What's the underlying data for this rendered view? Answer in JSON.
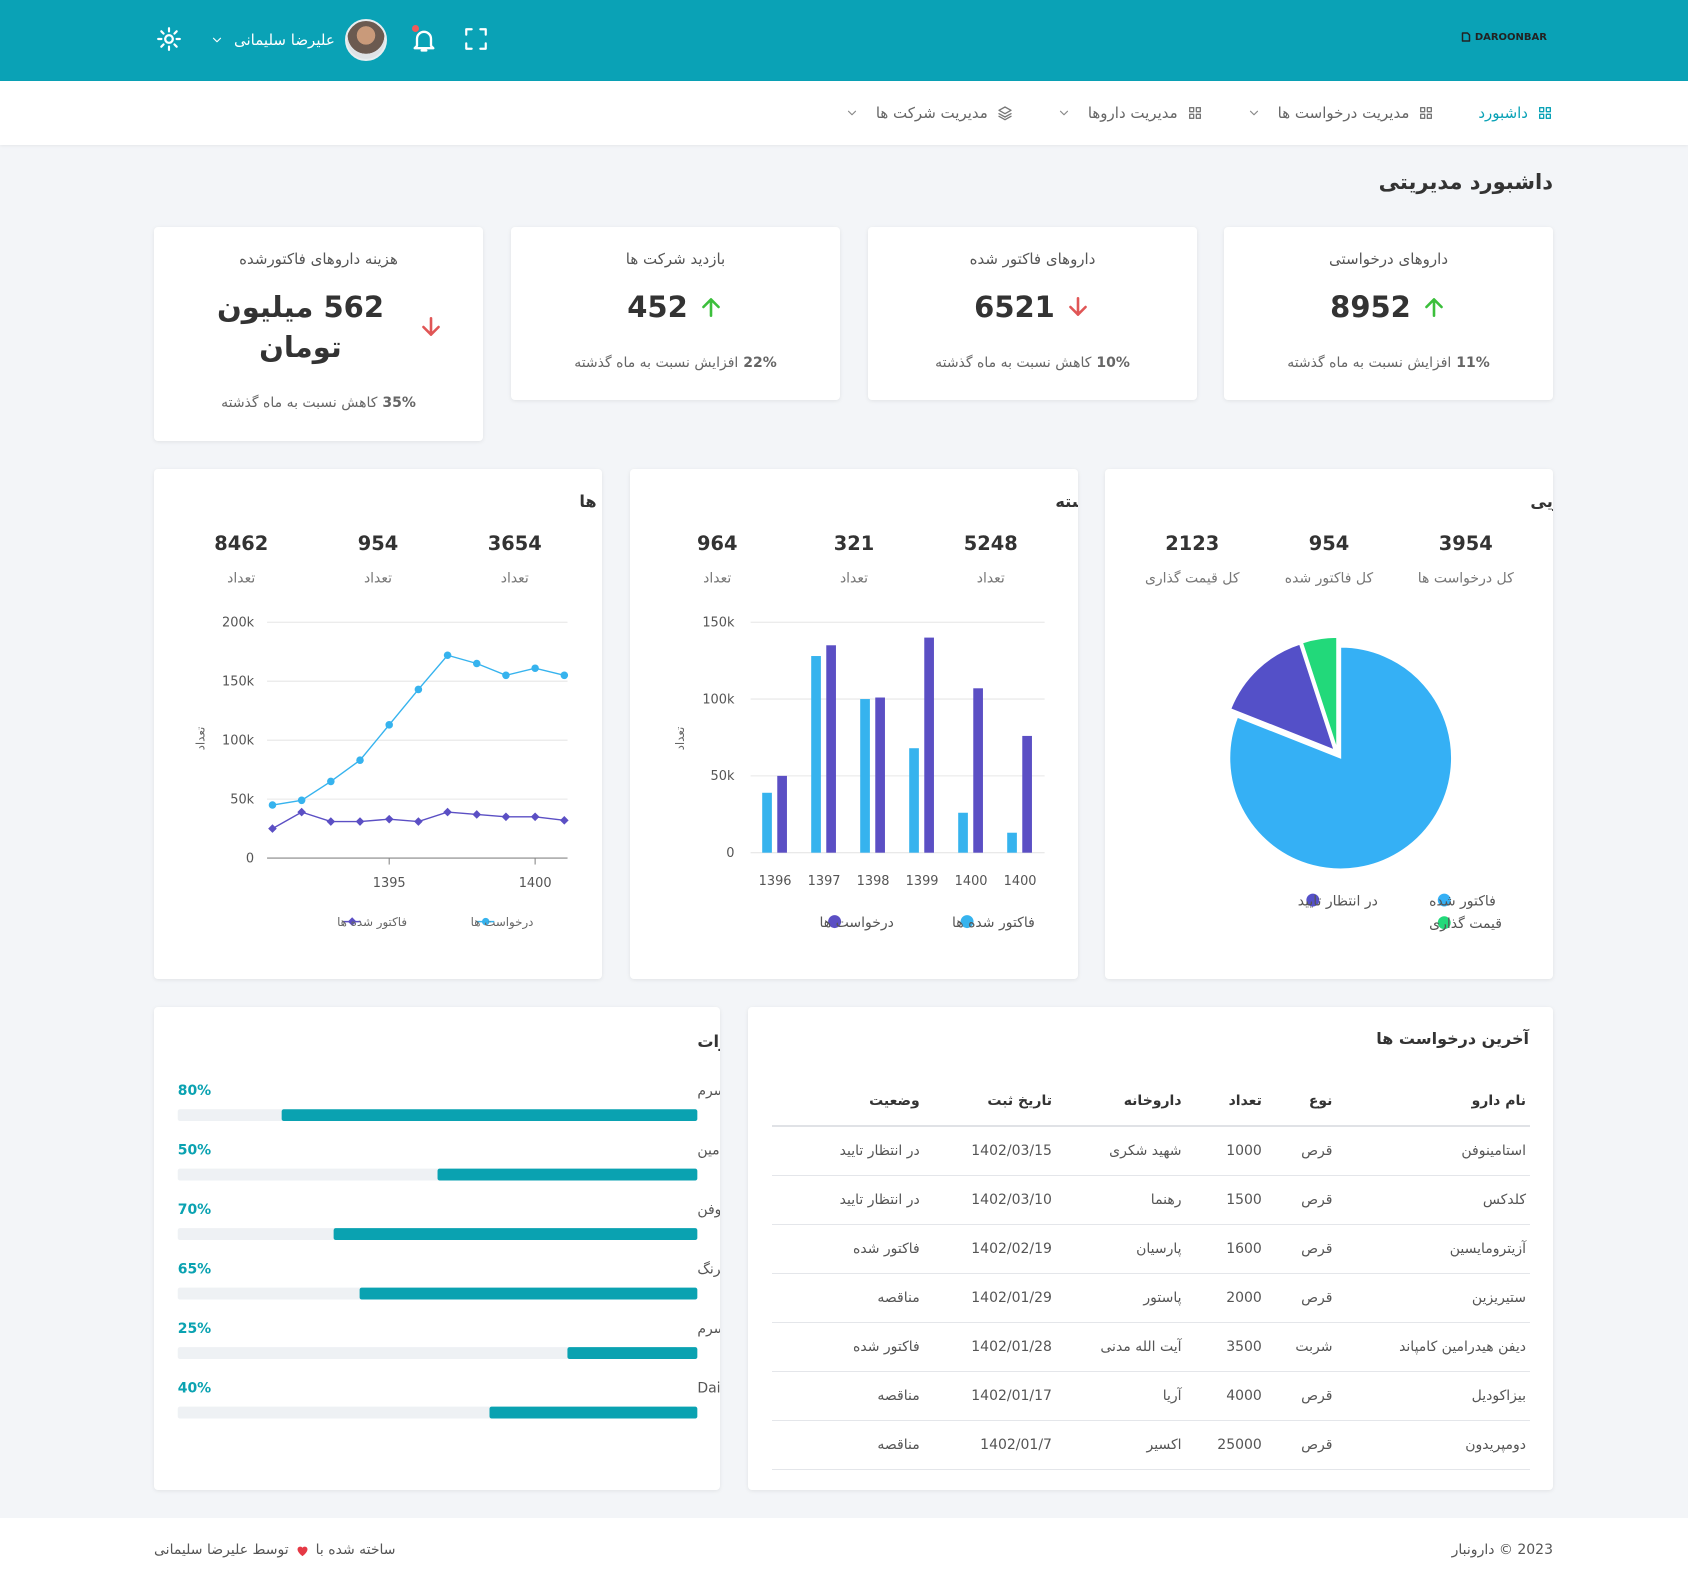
{
  "header": {
    "brand": "DAROONBAR",
    "user": "علیرضا سلیمانی"
  },
  "nav": [
    "داشبورد",
    "مدیریت درخواست ها",
    "مدیریت داروها",
    "مدیریت شرکت ها"
  ],
  "page_title": "داشبورد مدیریتی",
  "stats": [
    {
      "title": "داروهای درخواستی",
      "value": "8952",
      "trend": "up",
      "change": "11%",
      "note": "افزایش نسبت به ماه گذشته"
    },
    {
      "title": "داروهای فاکتور شده",
      "value": "6521",
      "trend": "down",
      "change": "10%",
      "note": "کاهش نسبت به ماه گذشته"
    },
    {
      "title": "بازدید شرکت ها",
      "value": "452",
      "trend": "up",
      "change": "22%",
      "note": "افزایش نسبت به ماه گذشته"
    },
    {
      "title": "هزینه داروهای فاکتورشده",
      "value": "562 میلیون تومان",
      "trend": "down",
      "change": "35%",
      "note": "کاهش نسبت به ماه گذشته"
    }
  ],
  "charts": [
    {
      "type": "line",
      "title": "تعداد فاکتور شده ها",
      "summary": [
        {
          "value": 3654,
          "label": "تعداد"
        },
        {
          "value": 954,
          "label": "تعداد"
        },
        {
          "value": 8462,
          "label": "تعداد"
        }
      ],
      "ylabel": "تعداد",
      "x": [
        1391,
        1392,
        1393,
        1394,
        1395,
        1396,
        1397,
        1398,
        1399,
        1400,
        1401
      ],
      "xlim": [
        1391,
        1401
      ],
      "xticks": [
        1395,
        1400
      ],
      "ylim": [
        0,
        200000
      ],
      "yticks": [
        0,
        {
          "value": 50000,
          "label": "50k"
        },
        {
          "value": 100000,
          "label": "100k"
        },
        {
          "value": 150000,
          "label": "150k"
        },
        {
          "value": 200000,
          "label": "200k"
        }
      ],
      "grid": true,
      "series": [
        {
          "name": "درخواست ها",
          "color": "#36b3ee",
          "values": [
            45000,
            49000,
            65000,
            83000,
            113000,
            143000,
            172000,
            165000,
            155000,
            161000,
            155000
          ]
        },
        {
          "name": "فاکتور شده ها",
          "color": "#5b4fc4",
          "values": [
            25000,
            39000,
            31000,
            31000,
            33000,
            31000,
            39000,
            37000,
            35000,
            35000,
            32000
          ]
        }
      ]
    },
    {
      "type": "bar",
      "title": "درخواست و فاکتور سال های گذشته",
      "summary": [
        {
          "value": 5248,
          "label": "تعداد"
        },
        {
          "value": 321,
          "label": "تعداد"
        },
        {
          "value": 964,
          "label": "تعداد"
        }
      ],
      "ylabel": "تعداد",
      "categories": [
        "1396",
        "1397",
        "1398",
        "1399",
        "1400",
        "1400"
      ],
      "ylim": [
        0,
        150000
      ],
      "yticks": [
        0,
        {
          "value": 50000,
          "label": "50k"
        },
        {
          "value": 100000,
          "label": "100k"
        },
        {
          "value": 150000,
          "label": "150k"
        }
      ],
      "grid": true,
      "series": [
        {
          "name": "فاکتور شده ها",
          "color": "#36b3ee",
          "values": [
            39000,
            128000,
            100000,
            68000,
            26000,
            13000
          ]
        },
        {
          "name": "درخواست ها",
          "color": "#5b4fc4",
          "values": [
            50000,
            135000,
            101000,
            140000,
            107000,
            76000
          ]
        }
      ]
    },
    {
      "type": "pie",
      "title": "درصد درخواست های دارویی",
      "summary": [
        {
          "value": 3954,
          "label": "کل درخواست ها"
        },
        {
          "value": 954,
          "label": "کل فاکتور شده"
        },
        {
          "value": 2123,
          "label": "کل قیمت گذاری"
        }
      ],
      "categories": [
        "فاکتور شده",
        "در انتظار تایید",
        "قیمت گذاری"
      ],
      "values": [
        81,
        14,
        5
      ],
      "colors": [
        "#35b0f5",
        "#5450c8",
        "#22d97a"
      ]
    }
  ],
  "orders": {
    "title": "حد سفارش دارو/تجهیزات",
    "color": "#0aa2b1",
    "items": [
      {
        "name": "سرم",
        "value": 80,
        "label": "80%"
      },
      {
        "name": "آنتی هستامین",
        "value": 50,
        "label": "50%"
      },
      {
        "name": "استامینوفن",
        "value": 70,
        "label": "70%"
      },
      {
        "name": "سرنگ",
        "value": 65,
        "label": "65%"
      },
      {
        "name": "سرم",
        "value": 25,
        "label": "25%"
      },
      {
        "name": "Daily Visits",
        "value": 40,
        "label": "40%"
      }
    ]
  },
  "table": {
    "title": "آخرین درخواست ها",
    "columns": [
      "نام دارو",
      "نوع",
      "تعداد",
      "داروخانه",
      "تاریخ ثبت",
      "وضعیت"
    ],
    "rows": [
      [
        "استامینوفن",
        "قرص",
        "1000",
        "شهید شکری",
        "1402/03/15",
        "در انتظار تایید"
      ],
      [
        "کلدکس",
        "قرص",
        "1500",
        "رهنما",
        "1402/03/10",
        "در انتظار تایید"
      ],
      [
        "آزیترومایسین",
        "قرص",
        "1600",
        "پارسیان",
        "1402/02/19",
        "فاکتور شده"
      ],
      [
        "ستیریزین",
        "قرص",
        "2000",
        "پاستور",
        "1402/01/29",
        "مناقصه"
      ],
      [
        "دیفن هیدرامین کامپاند",
        "شربت",
        "3500",
        "آیت الله مدنی",
        "1402/01/28",
        "فاکتور شده"
      ],
      [
        "بیزاکودیل",
        "قرص",
        "4000",
        "آریا",
        "1402/01/17",
        "مناقصه"
      ],
      [
        "دومپریدون",
        "قرص",
        "25000",
        "اکسیر",
        "1402/01/7",
        "مناقصه"
      ]
    ]
  },
  "footer": {
    "copyright": "2023 © دارونبار",
    "made_with": "ساخته شده با",
    "by": "توسط علیرضا سلیمانی"
  }
}
